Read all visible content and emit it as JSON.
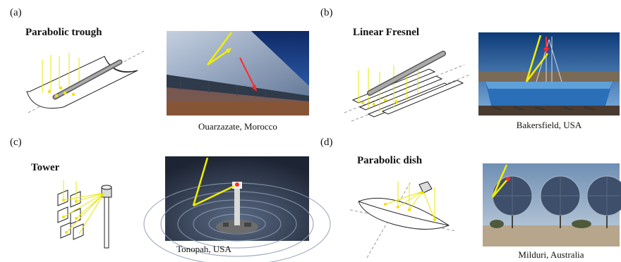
{
  "panels": [
    {
      "label": "(a)",
      "title": "Parabolic trough",
      "location": "Ouarzazate, Morocco"
    },
    {
      "label": "(b)",
      "title": "Linear Fresnel",
      "location": "Bakersfield, USA"
    },
    {
      "label": "(c)",
      "title": "Tower",
      "location": "Tonopah, USA"
    },
    {
      "label": "(d)",
      "title": "Parabolic dish",
      "location": "Milduri, Australia"
    }
  ],
  "colors": {
    "sunray": "#f2ef00",
    "focus_dot": "#ff2a2a",
    "sky": "#1f4d96",
    "mirror": "#9fb0c8",
    "ground": "#7a4a32"
  }
}
